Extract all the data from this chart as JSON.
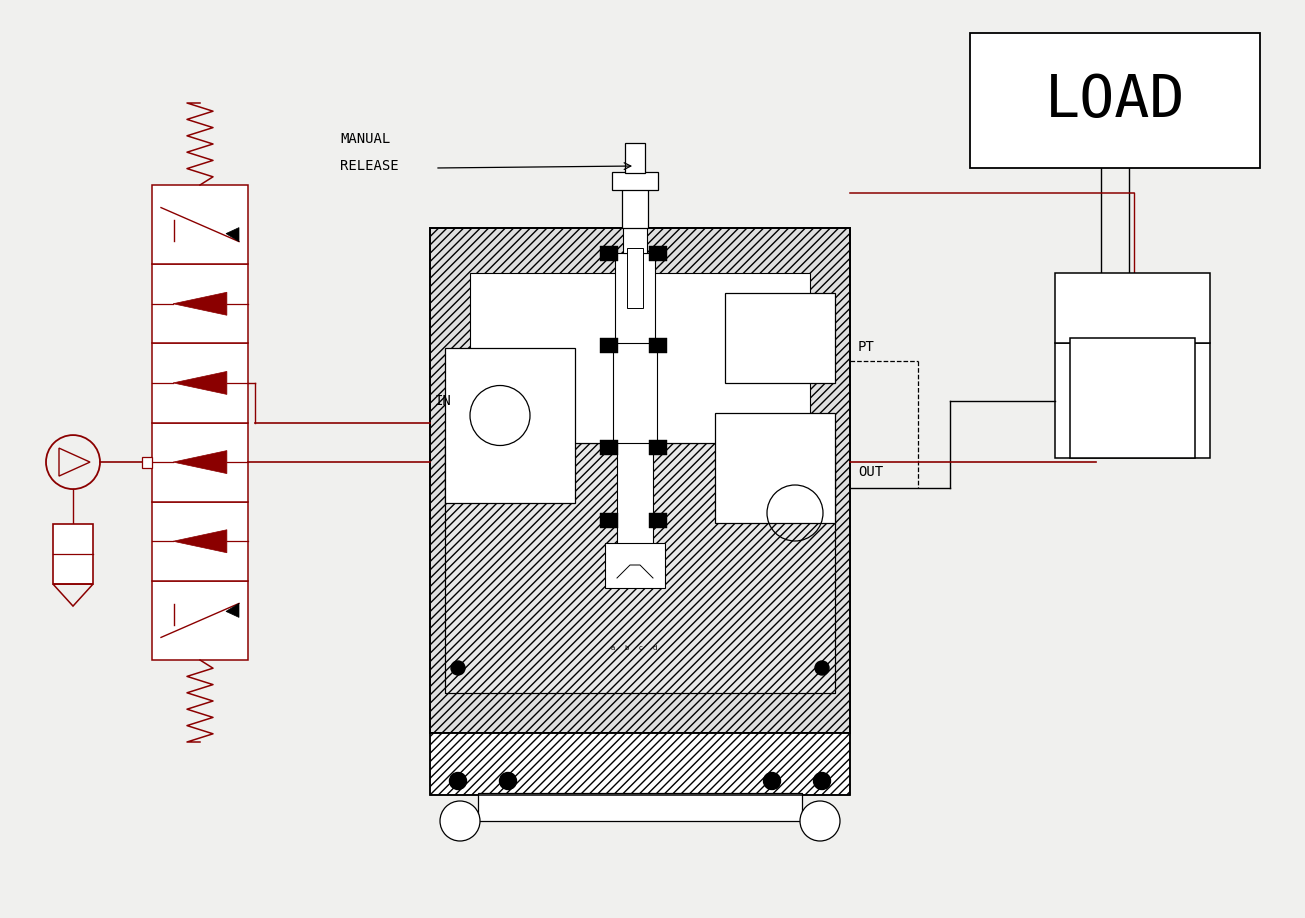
{
  "bg_color": "#f0f0ee",
  "valve_color": "#8B0000",
  "load_text": "LOAD",
  "manual_line1": "MANUAL",
  "manual_line2": "RELEASE",
  "in_label": "IN",
  "out_label": "OUT",
  "pt_label": "PT",
  "fig_w": 13.05,
  "fig_h": 9.18,
  "xlim": [
    0,
    13.05
  ],
  "ylim": [
    0,
    9.18
  ]
}
